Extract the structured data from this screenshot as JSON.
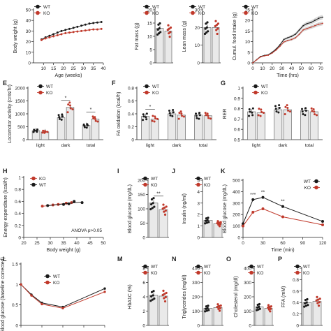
{
  "colors": {
    "wt": "#1a1a1a",
    "ko": "#c0392b",
    "bar": "#e9e9e9",
    "band": "#b8b8b8"
  },
  "chart_data": [
    {
      "id": "body_weight",
      "type": "line",
      "xlabel": "Age (weeks)",
      "ylabel": "Body weight (g)",
      "xticks": [
        10,
        15,
        20,
        25,
        30,
        35,
        40
      ],
      "yticks": [
        0,
        10,
        20,
        30,
        40,
        50
      ],
      "xlim": [
        5,
        40
      ],
      "ylim": [
        0,
        50
      ],
      "x": [
        9,
        11,
        13,
        15,
        17,
        19,
        21,
        23,
        25,
        27,
        29,
        31,
        33,
        35,
        37,
        39
      ],
      "series": [
        {
          "name": "WT",
          "values": [
            22,
            24,
            25.5,
            27,
            28.5,
            30,
            31,
            32,
            33,
            34,
            35,
            36,
            37,
            37.5,
            38,
            38.5
          ]
        },
        {
          "name": "KO",
          "values": [
            21.5,
            23,
            24,
            25,
            26,
            27,
            28,
            28.5,
            29,
            29.5,
            30,
            30.5,
            31,
            31.5,
            31.5,
            32
          ]
        }
      ]
    },
    {
      "id": "fat_mass",
      "type": "bar",
      "ylabel": "Fat mass (g)",
      "yticks": [
        0,
        5,
        10,
        15,
        20
      ],
      "ylim": [
        0,
        20
      ],
      "categories": [
        "WT",
        "KO"
      ],
      "values": [
        13,
        12
      ]
    },
    {
      "id": "lean_mass",
      "type": "bar",
      "ylabel": "Lean mass (g)",
      "yticks": [
        0,
        10,
        20,
        30
      ],
      "ylim": [
        0,
        30
      ],
      "categories": [
        "WT",
        "KO"
      ],
      "values": [
        20,
        20
      ]
    },
    {
      "id": "food_intake",
      "type": "line",
      "xlabel": "Time (hrs)",
      "ylabel": "Cumul. food intake (g)",
      "xticks": [
        0,
        10,
        20,
        30,
        40,
        50,
        60,
        70
      ],
      "yticks": [
        0,
        5,
        10,
        15,
        20,
        25
      ],
      "xlim": [
        0,
        72
      ],
      "ylim": [
        0,
        25
      ],
      "x": [
        0,
        4,
        8,
        12,
        16,
        20,
        24,
        28,
        32,
        36,
        40,
        44,
        48,
        52,
        56,
        60,
        64,
        68,
        72
      ],
      "series": [
        {
          "name": "WT",
          "values": [
            0,
            1.5,
            3,
            3.5,
            3.8,
            5,
            6.5,
            8.5,
            11,
            11.8,
            12.5,
            13.5,
            15.5,
            17.5,
            18.5,
            19,
            20,
            21,
            21.5
          ]
        },
        {
          "name": "KO",
          "values": [
            0,
            1.4,
            2.8,
            3.3,
            3.6,
            4.6,
            6,
            7.8,
            9.8,
            10.5,
            11,
            11.8,
            13.5,
            15.5,
            16.2,
            16.8,
            17.5,
            18.2,
            18.6
          ]
        }
      ]
    },
    {
      "id": "locomotor",
      "type": "bar",
      "panel": "E",
      "ylabel": "Locomotor activity (cnts/hr)",
      "yticks": [
        0,
        500,
        1000,
        1500,
        2000
      ],
      "ylim": [
        0,
        2000
      ],
      "categories": [
        "light",
        "dark",
        "total"
      ],
      "series": [
        {
          "name": "WT",
          "values": [
            350,
            850,
            550
          ]
        },
        {
          "name": "KO",
          "values": [
            300,
            1250,
            800
          ]
        }
      ],
      "annotations": [
        "*",
        "*"
      ]
    },
    {
      "id": "fa_oxidation",
      "type": "bar",
      "panel": "F",
      "ylabel": "FA oxidation (kcal/h)",
      "yticks": [
        0,
        0.2,
        0.4,
        0.6,
        0.8
      ],
      "ylim": [
        0,
        0.8
      ],
      "categories": [
        "light",
        "dark",
        "total"
      ],
      "series": [
        {
          "name": "WT",
          "values": [
            0.36,
            0.4,
            0.38
          ]
        },
        {
          "name": "KO",
          "values": [
            0.32,
            0.38,
            0.37
          ]
        }
      ],
      "annotations": [
        "*"
      ]
    },
    {
      "id": "rer",
      "type": "bar",
      "panel": "G",
      "ylabel": "RER",
      "yticks": [
        0.5,
        0.6,
        0.7,
        0.8,
        0.9,
        1.0
      ],
      "ylim": [
        0.5,
        1.0
      ],
      "categories": [
        "light",
        "dark",
        "total"
      ],
      "series": [
        {
          "name": "WT",
          "values": [
            0.77,
            0.79,
            0.78
          ]
        },
        {
          "name": "KO",
          "values": [
            0.76,
            0.79,
            0.77
          ]
        }
      ]
    },
    {
      "id": "energy_exp",
      "type": "scatter",
      "panel": "H",
      "xlabel": "Body weight (g)",
      "ylabel": "Energy expenditure (kcal/h)",
      "xticks": [
        20,
        25,
        30,
        35,
        40,
        45,
        50
      ],
      "yticks": [
        0.0,
        0.2,
        0.4,
        0.6,
        0.8,
        1.0
      ],
      "xlim": [
        20,
        50
      ],
      "ylim": [
        0,
        1.0
      ],
      "series": [
        {
          "name": "KO",
          "x": [
            27,
            31,
            33,
            36,
            38
          ],
          "y": [
            0.52,
            0.54,
            0.55,
            0.57,
            0.58
          ]
        },
        {
          "name": "WT",
          "x": [
            29,
            35,
            37,
            39,
            42
          ],
          "y": [
            0.53,
            0.55,
            0.56,
            0.6,
            0.58
          ]
        }
      ],
      "annotation": "ANOVA p>0.05"
    },
    {
      "id": "blood_glucose",
      "type": "bar",
      "panel": "I",
      "ylabel": "Blood glucose (mg/dL)",
      "yticks": [
        0,
        50,
        100,
        150,
        200
      ],
      "ylim": [
        0,
        200
      ],
      "categories": [
        "WT",
        "KO"
      ],
      "values": [
        120,
        97
      ],
      "annotations": [
        "**"
      ]
    },
    {
      "id": "insulin",
      "type": "bar",
      "panel": "J",
      "ylabel": "Insulin (ng/ml)",
      "yticks": [
        0,
        1,
        2,
        3,
        4,
        5
      ],
      "ylim": [
        0,
        5
      ],
      "categories": [
        "WT",
        "KO"
      ],
      "values": [
        1.5,
        1.2
      ]
    },
    {
      "id": "gtt",
      "type": "line",
      "panel": "K",
      "xlabel": "Time (min)",
      "ylabel": "Blood glucose (mg/dL)",
      "xticks": [
        0,
        30,
        60,
        90,
        120
      ],
      "yticks": [
        0,
        100,
        200,
        300,
        400,
        500
      ],
      "xlim": [
        0,
        120
      ],
      "ylim": [
        0,
        500
      ],
      "x": [
        0,
        15,
        30,
        60,
        120
      ],
      "series": [
        {
          "name": "WT",
          "values": [
            120,
            330,
            350,
            270,
            140
          ]
        },
        {
          "name": "KO",
          "values": [
            100,
            220,
            250,
            180,
            110
          ]
        }
      ],
      "annotations": [
        "***",
        "**",
        "**"
      ]
    },
    {
      "id": "itt",
      "type": "line",
      "panel": "L",
      "ylabel": "Blood glucose (baseline corrected)",
      "yticks": [
        0.0,
        0.5,
        1.0,
        1.5
      ],
      "ylim": [
        0,
        1.5
      ],
      "xlim": [
        0,
        120
      ],
      "x": [
        0,
        15,
        30,
        60,
        120
      ],
      "series": [
        {
          "name": "WT",
          "values": [
            1.0,
            0.75,
            0.55,
            0.45,
            0.9
          ]
        },
        {
          "name": "KO",
          "values": [
            1.0,
            0.73,
            0.52,
            0.42,
            0.82
          ]
        }
      ]
    },
    {
      "id": "hba1c",
      "type": "bar",
      "panel": "M",
      "ylabel": "HbA1C (%)",
      "yticks": [
        0,
        2,
        4,
        6,
        8
      ],
      "ylim": [
        0,
        8
      ],
      "categories": [
        "WT",
        "KO"
      ],
      "values": [
        4.2,
        4.1
      ]
    },
    {
      "id": "triglycerides",
      "type": "bar",
      "panel": "N",
      "ylabel": "Triglycerides (mg/dl)",
      "yticks": [
        0,
        100,
        200,
        300,
        400
      ],
      "ylim": [
        0,
        400
      ],
      "categories": [
        "WT",
        "KO"
      ],
      "values": [
        120,
        125
      ]
    },
    {
      "id": "cholesterol",
      "type": "bar",
      "panel": "O",
      "ylabel": "Cholesterol (mg/dl)",
      "yticks": [
        0,
        100,
        200,
        300,
        400
      ],
      "ylim": [
        0,
        400
      ],
      "categories": [
        "WT",
        "KO"
      ],
      "values": [
        130,
        120
      ]
    },
    {
      "id": "ffa",
      "type": "bar",
      "panel": "P",
      "ylabel": "FFA (mM)",
      "yticks": [
        0.0,
        0.2,
        0.4,
        0.6,
        0.8,
        1.0
      ],
      "ylim": [
        0,
        1.0
      ],
      "categories": [
        "WT",
        "KO"
      ],
      "values": [
        0.4,
        0.42
      ]
    }
  ]
}
